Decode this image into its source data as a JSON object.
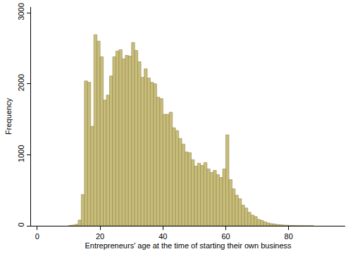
{
  "chart_data": {
    "type": "histogram",
    "x_label": "Entrepreneurs' age at the time of starting their own business",
    "y_label": "Frequency",
    "bins": [
      10,
      11,
      12,
      13,
      14,
      15,
      16,
      17,
      18,
      19,
      20,
      21,
      22,
      23,
      24,
      25,
      26,
      27,
      28,
      29,
      30,
      31,
      32,
      33,
      34,
      35,
      36,
      37,
      38,
      39,
      40,
      41,
      42,
      43,
      44,
      45,
      46,
      47,
      48,
      49,
      50,
      51,
      52,
      53,
      54,
      55,
      56,
      57,
      58,
      59,
      60,
      61,
      62,
      63,
      64,
      65,
      66,
      67,
      68,
      69,
      70,
      71,
      72,
      73,
      74,
      75,
      76,
      77,
      78,
      79,
      80,
      81,
      82,
      83,
      84,
      85,
      86,
      87,
      88
    ],
    "values": [
      5,
      10,
      20,
      80,
      440,
      2040,
      2020,
      1400,
      2690,
      2600,
      2380,
      1770,
      1840,
      2110,
      2380,
      2460,
      2480,
      2350,
      2400,
      2390,
      2580,
      2470,
      2310,
      2090,
      2210,
      2080,
      2020,
      2000,
      1810,
      1790,
      1570,
      1570,
      1600,
      1380,
      1340,
      1230,
      1150,
      1040,
      1030,
      930,
      840,
      880,
      850,
      890,
      800,
      750,
      780,
      720,
      680,
      800,
      1280,
      650,
      520,
      430,
      380,
      290,
      250,
      190,
      150,
      130,
      90,
      75,
      55,
      40,
      30,
      25,
      18,
      14,
      10,
      8,
      5,
      4,
      3,
      2,
      2,
      1,
      1,
      1
    ],
    "color": "#c9bd7a",
    "xlim": [
      -2,
      98
    ],
    "ylim": [
      0,
      3080
    ],
    "xticks": [
      0,
      20,
      40,
      60,
      80
    ],
    "yticks": [
      0,
      1000,
      2000,
      3000
    ],
    "grid": false
  }
}
